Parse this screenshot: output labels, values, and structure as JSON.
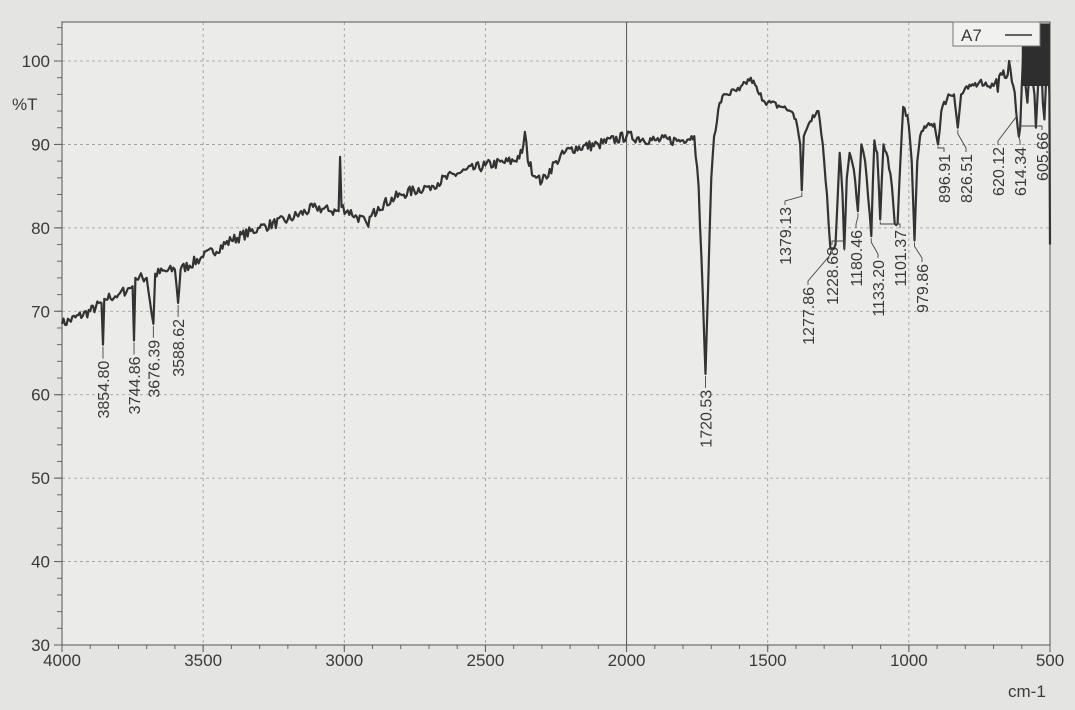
{
  "chart_data": {
    "type": "line",
    "title": "",
    "xlabel": "cm-1",
    "ylabel": "%T",
    "xlim": [
      4000,
      500
    ],
    "ylim": [
      30,
      105
    ],
    "x_axis_reversed": true,
    "grid": true,
    "legend_placement": "top-right",
    "x_ticks": [
      4000,
      3500,
      3000,
      2500,
      2000,
      1500,
      1000,
      500
    ],
    "y_ticks": [
      30,
      40,
      50,
      60,
      70,
      80,
      90,
      100
    ],
    "series": [
      {
        "name": "A7",
        "color": "#333333",
        "points": [
          [
            4000,
            68.5
          ],
          [
            3900,
            70
          ],
          [
            3860,
            71
          ],
          [
            3854.8,
            66
          ],
          [
            3850,
            71.5
          ],
          [
            3800,
            72
          ],
          [
            3750,
            73
          ],
          [
            3744.86,
            66.5
          ],
          [
            3740,
            74
          ],
          [
            3700,
            74
          ],
          [
            3676.39,
            68.5
          ],
          [
            3670,
            74.5
          ],
          [
            3600,
            75
          ],
          [
            3588.62,
            71
          ],
          [
            3580,
            75
          ],
          [
            3500,
            76.5
          ],
          [
            3400,
            78.5
          ],
          [
            3300,
            80
          ],
          [
            3200,
            81
          ],
          [
            3100,
            82.5
          ],
          [
            3050,
            82
          ],
          [
            3020,
            82
          ],
          [
            3015,
            88.5
          ],
          [
            3010,
            82.5
          ],
          [
            2960,
            81.5
          ],
          [
            2920,
            80.5
          ],
          [
            2880,
            82.5
          ],
          [
            2800,
            84
          ],
          [
            2700,
            85
          ],
          [
            2600,
            86.5
          ],
          [
            2500,
            87.5
          ],
          [
            2400,
            88
          ],
          [
            2370,
            89
          ],
          [
            2360,
            91.5
          ],
          [
            2350,
            88
          ],
          [
            2320,
            86
          ],
          [
            2300,
            85.5
          ],
          [
            2250,
            88
          ],
          [
            2200,
            89.5
          ],
          [
            2100,
            90
          ],
          [
            2000,
            91
          ],
          [
            1900,
            90.5
          ],
          [
            1800,
            90.5
          ],
          [
            1760,
            91
          ],
          [
            1745,
            85
          ],
          [
            1730,
            72
          ],
          [
            1720.53,
            62.5
          ],
          [
            1712,
            72
          ],
          [
            1700,
            86
          ],
          [
            1690,
            91
          ],
          [
            1670,
            95
          ],
          [
            1650,
            96
          ],
          [
            1600,
            96.5
          ],
          [
            1560,
            98
          ],
          [
            1530,
            96
          ],
          [
            1500,
            95
          ],
          [
            1450,
            94.5
          ],
          [
            1420,
            94
          ],
          [
            1400,
            93
          ],
          [
            1385,
            90
          ],
          [
            1379.13,
            84.5
          ],
          [
            1372,
            91
          ],
          [
            1340,
            93.5
          ],
          [
            1320,
            94
          ],
          [
            1305,
            90
          ],
          [
            1290,
            84
          ],
          [
            1277.86,
            77.5
          ],
          [
            1260,
            78
          ],
          [
            1245,
            89
          ],
          [
            1235,
            84
          ],
          [
            1228.68,
            77.5
          ],
          [
            1220,
            86
          ],
          [
            1210,
            89
          ],
          [
            1195,
            87
          ],
          [
            1180.46,
            82
          ],
          [
            1168,
            90
          ],
          [
            1155,
            88
          ],
          [
            1133.2,
            79
          ],
          [
            1122,
            90.5
          ],
          [
            1112,
            89
          ],
          [
            1101.37,
            81
          ],
          [
            1090,
            90
          ],
          [
            1075,
            88.5
          ],
          [
            1060,
            85
          ],
          [
            1050,
            80.5
          ],
          [
            1040,
            80.5
          ],
          [
            1030,
            88
          ],
          [
            1020,
            94.5
          ],
          [
            1005,
            93.5
          ],
          [
            990,
            88
          ],
          [
            979.86,
            78.5
          ],
          [
            970,
            88
          ],
          [
            960,
            91
          ],
          [
            940,
            92
          ],
          [
            910,
            92.5
          ],
          [
            896.91,
            90
          ],
          [
            885,
            94
          ],
          [
            860,
            96
          ],
          [
            840,
            96
          ],
          [
            826.51,
            92
          ],
          [
            815,
            96
          ],
          [
            780,
            97
          ],
          [
            750,
            97.5
          ],
          [
            700,
            97
          ],
          [
            660,
            98
          ],
          [
            645,
            100
          ],
          [
            630,
            97
          ],
          [
            620.12,
            94
          ],
          [
            614.34,
            92
          ],
          [
            605.66,
            92
          ],
          [
            595,
            101
          ],
          [
            580,
            95
          ],
          [
            565,
            101
          ],
          [
            550,
            92
          ],
          [
            535,
            101
          ],
          [
            520,
            93
          ],
          [
            508,
            101
          ],
          [
            502,
            96
          ],
          [
            500,
            78
          ]
        ]
      }
    ],
    "peak_labels": [
      {
        "x": 3854.8,
        "y": 66,
        "text": "3854.80"
      },
      {
        "x": 3744.86,
        "y": 66.5,
        "text": "3744.86"
      },
      {
        "x": 3676.39,
        "y": 68.5,
        "text": "3676.39"
      },
      {
        "x": 3588.62,
        "y": 71,
        "text": "3588.62"
      },
      {
        "x": 1720.53,
        "y": 62.5,
        "text": "1720.53"
      },
      {
        "x": 1379.13,
        "y": 84.5,
        "text": "1379.13"
      },
      {
        "x": 1277.86,
        "y": 77.5,
        "text": "1277.86"
      },
      {
        "x": 1228.68,
        "y": 77.5,
        "text": "1228.68"
      },
      {
        "x": 1180.46,
        "y": 82,
        "text": "1180.46"
      },
      {
        "x": 1133.2,
        "y": 79,
        "text": "1133.20"
      },
      {
        "x": 1101.37,
        "y": 81,
        "text": "1101.37"
      },
      {
        "x": 979.86,
        "y": 78.5,
        "text": "979.86"
      },
      {
        "x": 896.91,
        "y": 90,
        "text": "896.91"
      },
      {
        "x": 826.51,
        "y": 92,
        "text": "826.51"
      },
      {
        "x": 620.12,
        "y": 94,
        "text": "620.12"
      },
      {
        "x": 614.34,
        "y": 92,
        "text": "614.34"
      },
      {
        "x": 605.66,
        "y": 92,
        "text": "605.66"
      }
    ]
  }
}
